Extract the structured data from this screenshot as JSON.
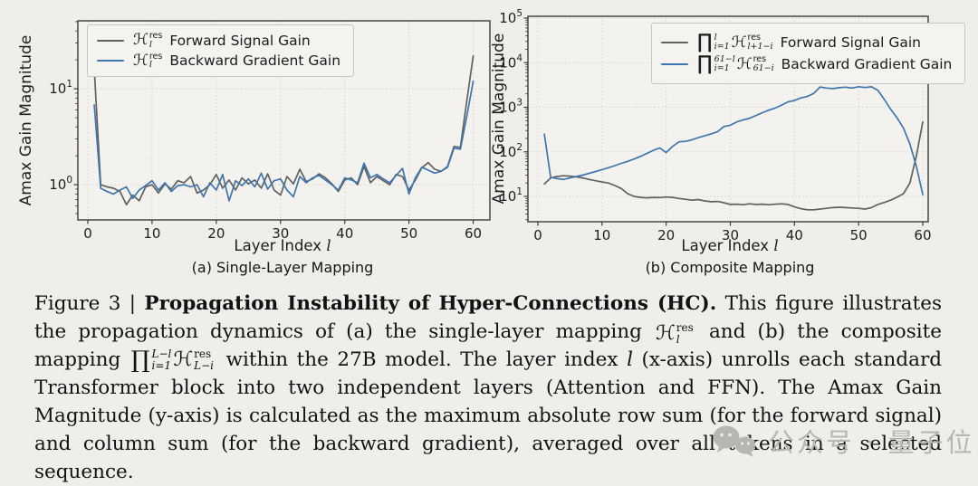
{
  "figure": {
    "panels": [
      {
        "id": "a",
        "ylabel": "Amax Gain Magnitude",
        "xlabel_prefix": "Layer Index ",
        "xlabel_var": "l",
        "subcaption": "(a) Single-Layer Mapping",
        "legend": {
          "items": [
            {
              "math": {
                "base": "ℋ",
                "sup": "res",
                "sub": "l"
              },
              "label": "Forward Signal Gain"
            },
            {
              "math": {
                "base": "ℋ",
                "sup": "res",
                "sub": "l"
              },
              "label": "Backward Gradient Gain"
            }
          ]
        }
      },
      {
        "id": "b",
        "ylabel": "Amax Gain Magnitude",
        "xlabel_prefix": "Layer Index ",
        "xlabel_var": "l",
        "subcaption": "(b) Composite Mapping",
        "legend": {
          "items": [
            {
              "prod": {
                "sym": "∏",
                "sup": "l",
                "sub": "i=1"
              },
              "math": {
                "base": "ℋ",
                "sup": "res",
                "sub": "l+1−i"
              },
              "label": "Forward Signal Gain"
            },
            {
              "prod": {
                "sym": "∏",
                "sup": "61−l",
                "sub": "i=1"
              },
              "math": {
                "base": "ℋ",
                "sup": "res",
                "sub": "61−i"
              },
              "label": "Backward Gradient Gain"
            }
          ]
        }
      }
    ]
  },
  "chart_data": [
    {
      "type": "line",
      "panel": "a",
      "title": "(a) Single-Layer Mapping",
      "xlabel": "Layer Index l",
      "ylabel": "Amax Gain Magnitude",
      "yscale": "log",
      "grid": true,
      "legend_position": "upper left",
      "xlim": [
        -1.55,
        62.6
      ],
      "ylim": [
        0.43,
        51
      ],
      "xticks": [
        0,
        10,
        20,
        30,
        40,
        50,
        60
      ],
      "yticks": [
        {
          "value": 1,
          "base": "10",
          "exp": "0"
        },
        {
          "value": 10,
          "base": "10",
          "exp": "1"
        }
      ],
      "x_start": 1,
      "series": [
        {
          "name": "H_l^res Forward Signal Gain",
          "color": "#616161",
          "values": [
            16,
            1.0,
            0.95,
            0.92,
            0.85,
            0.62,
            0.78,
            0.68,
            0.95,
            1.0,
            0.82,
            1.02,
            0.9,
            1.1,
            1.05,
            1.22,
            0.82,
            0.88,
            1.0,
            1.28,
            0.92,
            1.12,
            0.88,
            1.18,
            1.02,
            1.12,
            0.92,
            1.3,
            0.88,
            0.78,
            1.22,
            1.02,
            1.45,
            1.08,
            1.15,
            1.3,
            1.18,
            1.02,
            0.85,
            1.12,
            1.18,
            1.0,
            1.55,
            1.05,
            1.22,
            1.1,
            1.0,
            1.28,
            1.22,
            0.88,
            1.12,
            1.5,
            1.7,
            1.45,
            1.38,
            1.55,
            2.5,
            2.45,
            7.5,
            22
          ]
        },
        {
          "name": "H_l^res Backward Gradient Gain",
          "color": "#3f76ad",
          "values": [
            6.8,
            0.92,
            0.85,
            0.8,
            0.88,
            0.95,
            0.72,
            0.88,
            0.98,
            1.1,
            0.88,
            1.05,
            0.85,
            0.98,
            1.0,
            0.95,
            1.0,
            0.75,
            1.05,
            0.88,
            1.28,
            0.68,
            1.1,
            0.98,
            1.15,
            0.95,
            1.32,
            0.9,
            1.1,
            1.15,
            0.88,
            0.75,
            1.22,
            1.05,
            1.18,
            1.25,
            1.12,
            1.0,
            0.88,
            1.18,
            1.12,
            1.05,
            1.68,
            1.18,
            1.28,
            1.15,
            1.05,
            1.25,
            1.48,
            0.8,
            1.18,
            1.52,
            1.42,
            1.32,
            1.38,
            1.52,
            2.4,
            2.35,
            5.2,
            12
          ]
        }
      ]
    },
    {
      "type": "line",
      "panel": "b",
      "title": "(b) Composite Mapping",
      "xlabel": "Layer Index l",
      "ylabel": "Amax Gain Magnitude",
      "yscale": "log",
      "grid": true,
      "legend_position": "upper right",
      "xlim": [
        -1.55,
        60.85
      ],
      "ylim": [
        2.7,
        110000
      ],
      "xticks": [
        0,
        10,
        20,
        30,
        40,
        50,
        60
      ],
      "yticks": [
        {
          "value": 10,
          "base": "10",
          "exp": "1"
        },
        {
          "value": 100,
          "base": "10",
          "exp": "2"
        },
        {
          "value": 1000,
          "base": "10",
          "exp": "3"
        },
        {
          "value": 10000,
          "base": "10",
          "exp": "4"
        },
        {
          "value": 100000,
          "base": "10",
          "exp": "5"
        }
      ],
      "x_start": 1,
      "series": [
        {
          "name": "prod_{i=1}^{l} H_{l+1-i}^res Forward Signal Gain",
          "color": "#616161",
          "values": [
            19,
            26,
            28,
            29,
            28.5,
            27.5,
            26,
            24,
            22.5,
            21,
            20,
            17.5,
            15,
            11.5,
            10,
            9.5,
            9.3,
            9.5,
            9.4,
            9.7,
            9.5,
            9.0,
            8.6,
            8.2,
            8.5,
            7.9,
            7.6,
            7.7,
            7.2,
            6.6,
            6.7,
            6.5,
            6.8,
            6.6,
            6.7,
            6.5,
            6.7,
            6.8,
            6.6,
            5.8,
            5.3,
            5.0,
            5.0,
            5.2,
            5.4,
            5.6,
            5.7,
            5.6,
            5.5,
            5.4,
            5.2,
            5.6,
            6.6,
            7.3,
            8.2,
            9.6,
            11.5,
            20,
            80,
            470
          ]
        },
        {
          "name": "prod_{i=1}^{61-l} H_{61-i}^res Backward Gradient Gain",
          "color": "#3f76ad",
          "values": [
            250,
            27,
            25,
            24,
            26,
            28,
            30,
            33,
            36,
            40,
            44,
            49,
            55,
            61,
            69,
            79,
            92,
            108,
            122,
            96,
            132,
            168,
            172,
            186,
            208,
            228,
            252,
            282,
            370,
            395,
            470,
            520,
            565,
            655,
            755,
            860,
            960,
            1120,
            1320,
            1420,
            1620,
            1750,
            2050,
            2850,
            2700,
            2620,
            2750,
            2820,
            2700,
            2900,
            2780,
            2880,
            2400,
            1500,
            900,
            580,
            340,
            150,
            48,
            11
          ]
        }
      ]
    }
  ],
  "caption": {
    "prefix": "Figure 3 | ",
    "bold": "Propagation Instability of Hyper-Connections (HC).",
    "seg1": " This figure illustrates the propagation dynamics of (a) the single-layer mapping ",
    "m1": {
      "base": "ℋ",
      "sup": "res",
      "sub": "l"
    },
    "seg2": " and (b) the composite mapping ",
    "m2": {
      "prod": "∏",
      "psup": "L−l",
      "psub": "i=1",
      "base": "ℋ",
      "sup": "res",
      "sub": "L−i"
    },
    "seg3": " within the 27B model. The layer index ",
    "lvar": "l",
    "seg4": " (x-axis) unrolls each standard Transformer block into two independent layers (Attention and FFN). The Amax Gain Magnitude (y-axis) is calculated as the maximum absolute row sum (for the forward signal) and column sum (for the backward gradient), averaged over all tokens in a selected sequence."
  },
  "watermark": {
    "icon": "wechat-bubbles",
    "text": "公众号 · 量子位"
  },
  "colors": {
    "forward_gray": "#616161",
    "backward_blue": "#3f76ad",
    "page_background": "#efeeea",
    "plot_background": "#f3f2ee",
    "grid": "#d2d1cd",
    "watermark_gray": "#b7b6b2"
  }
}
